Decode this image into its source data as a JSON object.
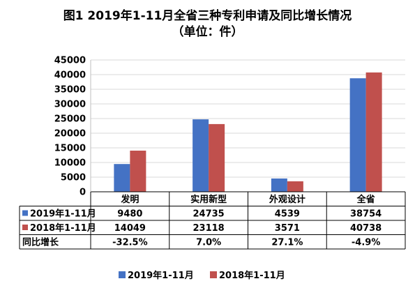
{
  "header": {
    "title": "图1 2019年1-11月全省三种专利申请及同比增长情况",
    "subtitle": "（单位：件）"
  },
  "chart_data": {
    "type": "bar",
    "categories": [
      "发明",
      "实用新型",
      "外观设计",
      "全省"
    ],
    "series": [
      {
        "name": "2019年1-11月",
        "values": [
          9480,
          24735,
          4539,
          38754
        ],
        "color": "#4472c4"
      },
      {
        "name": "2018年1-11月",
        "values": [
          14049,
          23118,
          3571,
          40738
        ],
        "color": "#c0504d"
      }
    ],
    "ylim": [
      0,
      45000
    ],
    "yticks": [
      "0",
      "5000",
      "10000",
      "15000",
      "20000",
      "25000",
      "30000",
      "35000",
      "40000",
      "45000"
    ],
    "grid": true,
    "legend": "bottom",
    "table": {
      "rows": [
        {
          "label": "2019年1-11月",
          "cells": [
            "9480",
            "24735",
            "4539",
            "38754"
          ]
        },
        {
          "label": "2018年1-11月",
          "cells": [
            "14049",
            "23118",
            "3571",
            "40738"
          ]
        },
        {
          "label": "同比增长",
          "cells": [
            "-32.5%",
            "7.0%",
            "27.1%",
            "-4.9%"
          ]
        }
      ]
    }
  }
}
